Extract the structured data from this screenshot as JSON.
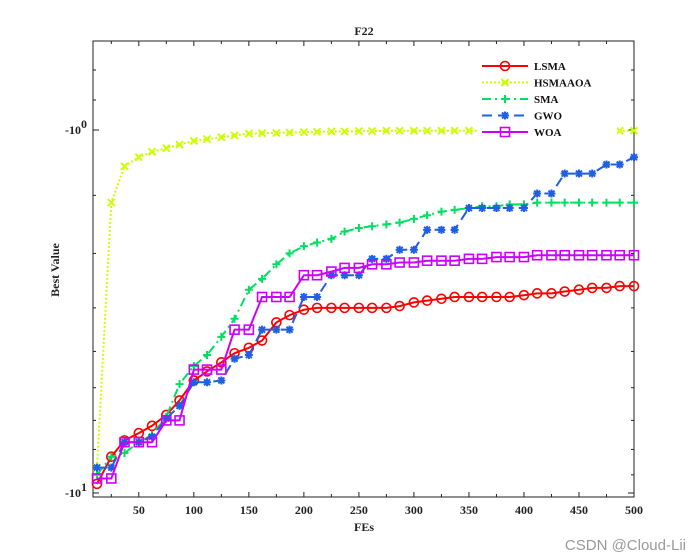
{
  "chart_data": {
    "type": "line",
    "title": "F22",
    "xlabel": "FEs",
    "ylabel": "Best Value",
    "xlim": [
      12,
      500
    ],
    "xticks": [
      50,
      100,
      150,
      200,
      250,
      300,
      350,
      400,
      450,
      500
    ],
    "yscale": "log",
    "ylim_log10": [
      -1.0,
      0.0
    ],
    "yticks": [
      {
        "label": "-10",
        "exp": "0",
        "pos": 0.0
      },
      {
        "label": "-10",
        "exp": "1",
        "pos": 1.0
      }
    ],
    "grid": false,
    "legend": "top-right",
    "series": [
      {
        "name": "LSMA",
        "color": "#ff0000",
        "marker": "circle",
        "dash": "",
        "x": [
          12,
          25,
          37,
          50,
          62,
          75,
          87,
          100,
          112,
          125,
          137,
          150,
          162,
          175,
          187,
          200,
          212,
          225,
          237,
          250,
          262,
          275,
          287,
          300,
          312,
          325,
          337,
          350,
          362,
          375,
          387,
          400,
          412,
          425,
          437,
          450,
          462,
          475,
          487,
          500
        ],
        "y": [
          -0.975,
          -0.9,
          -0.855,
          -0.835,
          -0.815,
          -0.785,
          -0.745,
          -0.69,
          -0.665,
          -0.64,
          -0.615,
          -0.6,
          -0.58,
          -0.53,
          -0.51,
          -0.495,
          -0.49,
          -0.49,
          -0.49,
          -0.49,
          -0.49,
          -0.49,
          -0.485,
          -0.475,
          -0.47,
          -0.465,
          -0.46,
          -0.46,
          -0.46,
          -0.46,
          -0.46,
          -0.455,
          -0.45,
          -0.45,
          -0.445,
          -0.44,
          -0.435,
          -0.435,
          -0.43,
          -0.43
        ]
      },
      {
        "name": "HSMAAOA",
        "color": "#ccff00",
        "marker": "x",
        "dash": "2,2",
        "x": [
          12,
          25,
          37,
          50,
          62,
          75,
          87,
          100,
          112,
          125,
          137,
          150,
          162,
          175,
          187,
          200,
          212,
          225,
          237,
          250,
          262,
          275,
          287,
          300,
          312,
          325,
          337,
          350,
          362,
          375,
          387,
          400,
          412,
          425,
          437,
          450,
          462,
          475,
          487,
          500
        ],
        "y": [
          -0.93,
          -0.2,
          -0.1,
          -0.075,
          -0.06,
          -0.05,
          -0.04,
          -0.03,
          -0.025,
          -0.02,
          -0.015,
          -0.01,
          -0.009,
          -0.008,
          -0.007,
          -0.006,
          -0.005,
          -0.004,
          -0.004,
          -0.003,
          -0.003,
          -0.002,
          -0.002,
          -0.002,
          -0.002,
          -0.002,
          -0.002,
          -0.002,
          -0.002,
          -0.002,
          -0.002,
          -0.002,
          -0.002,
          -0.002,
          -0.002,
          -0.002,
          -0.002,
          -0.002,
          -0.002,
          -0.002
        ]
      },
      {
        "name": "SMA",
        "color": "#00e060",
        "marker": "plus",
        "dash": "9,4,2,4",
        "x": [
          12,
          25,
          37,
          50,
          62,
          75,
          87,
          100,
          112,
          125,
          137,
          150,
          162,
          175,
          187,
          200,
          212,
          225,
          237,
          250,
          262,
          275,
          287,
          300,
          312,
          325,
          337,
          350,
          362,
          375,
          387,
          400,
          412,
          425,
          437,
          450,
          462,
          475,
          487,
          500
        ],
        "y": [
          -0.95,
          -0.9,
          -0.89,
          -0.86,
          -0.84,
          -0.79,
          -0.7,
          -0.65,
          -0.62,
          -0.57,
          -0.52,
          -0.44,
          -0.41,
          -0.37,
          -0.34,
          -0.32,
          -0.31,
          -0.3,
          -0.28,
          -0.27,
          -0.265,
          -0.26,
          -0.255,
          -0.245,
          -0.235,
          -0.225,
          -0.22,
          -0.215,
          -0.21,
          -0.21,
          -0.205,
          -0.205,
          -0.2,
          -0.2,
          -0.2,
          -0.2,
          -0.2,
          -0.2,
          -0.2,
          -0.2
        ]
      },
      {
        "name": "GWO",
        "color": "#1f5fe0",
        "marker": "star",
        "dash": "10,6",
        "x": [
          12,
          25,
          37,
          50,
          62,
          75,
          87,
          100,
          112,
          125,
          137,
          150,
          162,
          175,
          187,
          200,
          212,
          225,
          237,
          250,
          262,
          275,
          287,
          300,
          312,
          325,
          337,
          350,
          362,
          375,
          387,
          400,
          412,
          425,
          437,
          450,
          462,
          475,
          487,
          500
        ],
        "y": [
          -0.93,
          -0.93,
          -0.86,
          -0.86,
          -0.845,
          -0.795,
          -0.76,
          -0.695,
          -0.695,
          -0.69,
          -0.63,
          -0.62,
          -0.55,
          -0.55,
          -0.55,
          -0.46,
          -0.46,
          -0.4,
          -0.4,
          -0.4,
          -0.355,
          -0.355,
          -0.33,
          -0.33,
          -0.275,
          -0.275,
          -0.275,
          -0.215,
          -0.215,
          -0.215,
          -0.215,
          -0.215,
          -0.175,
          -0.175,
          -0.12,
          -0.12,
          -0.12,
          -0.095,
          -0.095,
          -0.075
        ]
      },
      {
        "name": "WOA",
        "color": "#cc00ff",
        "marker": "square",
        "dash": "",
        "x": [
          12,
          25,
          37,
          50,
          62,
          75,
          87,
          100,
          112,
          125,
          137,
          150,
          162,
          175,
          187,
          200,
          212,
          225,
          237,
          250,
          262,
          275,
          287,
          300,
          312,
          325,
          337,
          350,
          362,
          375,
          387,
          400,
          412,
          425,
          437,
          450,
          462,
          475,
          487,
          500
        ],
        "y": [
          -0.96,
          -0.96,
          -0.86,
          -0.86,
          -0.86,
          -0.8,
          -0.8,
          -0.66,
          -0.66,
          -0.66,
          -0.55,
          -0.55,
          -0.46,
          -0.46,
          -0.46,
          -0.4,
          -0.4,
          -0.39,
          -0.38,
          -0.38,
          -0.37,
          -0.37,
          -0.365,
          -0.365,
          -0.36,
          -0.36,
          -0.36,
          -0.355,
          -0.355,
          -0.35,
          -0.35,
          -0.35,
          -0.345,
          -0.345,
          -0.345,
          -0.345,
          -0.345,
          -0.345,
          -0.345,
          -0.345
        ]
      }
    ]
  },
  "watermark": "CSDN @Cloud-Lii"
}
